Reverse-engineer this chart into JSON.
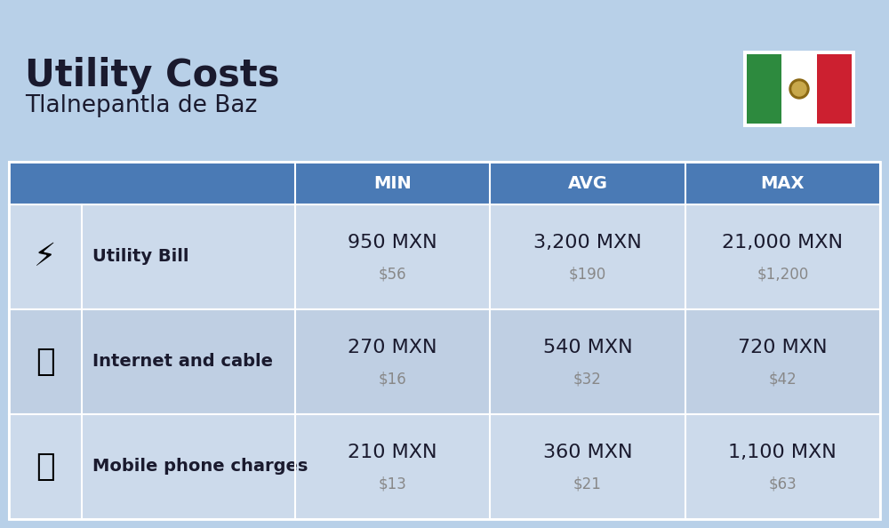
{
  "title": "Utility Costs",
  "subtitle": "Tlalnepantla de Baz",
  "background_color": "#b8d0e8",
  "header_color": "#4a7ab5",
  "header_text_color": "#ffffff",
  "row_colors": [
    "#ccdaeb",
    "#bfcfe3"
  ],
  "col_headers": [
    "MIN",
    "AVG",
    "MAX"
  ],
  "rows": [
    {
      "label": "Utility Bill",
      "min_mxn": "950 MXN",
      "min_usd": "$56",
      "avg_mxn": "3,200 MXN",
      "avg_usd": "$190",
      "max_mxn": "21,000 MXN",
      "max_usd": "$1,200"
    },
    {
      "label": "Internet and cable",
      "min_mxn": "270 MXN",
      "min_usd": "$16",
      "avg_mxn": "540 MXN",
      "avg_usd": "$32",
      "max_mxn": "720 MXN",
      "max_usd": "$42"
    },
    {
      "label": "Mobile phone charges",
      "min_mxn": "210 MXN",
      "min_usd": "$13",
      "avg_mxn": "360 MXN",
      "avg_usd": "$21",
      "max_mxn": "1,100 MXN",
      "max_usd": "$63"
    }
  ],
  "title_fontsize": 30,
  "subtitle_fontsize": 19,
  "header_fontsize": 14,
  "label_fontsize": 14,
  "value_fontsize": 16,
  "usd_fontsize": 12,
  "flag_green": "#2d8a3e",
  "flag_white": "#ffffff",
  "flag_red": "#cc2030",
  "text_dark": "#1a1a2e",
  "text_gray": "#888888",
  "border_color": "#ffffff"
}
